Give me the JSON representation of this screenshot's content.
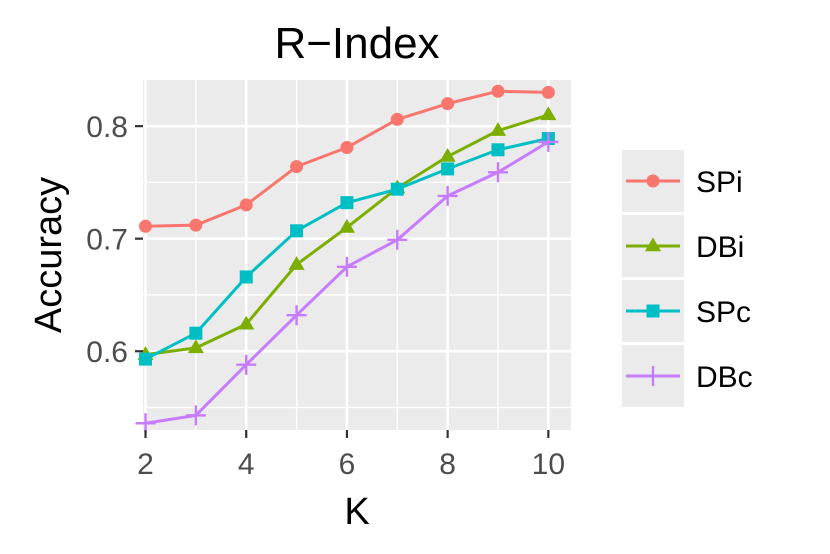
{
  "chart_data": {
    "type": "line",
    "title": "R−Index",
    "xlabel": "K",
    "ylabel": "Accuracy",
    "x": [
      2,
      3,
      4,
      5,
      6,
      7,
      8,
      9,
      10
    ],
    "xlim": [
      1.95,
      10.45
    ],
    "ylim": [
      0.53,
      0.841
    ],
    "xticks": [
      2,
      4,
      6,
      8,
      10
    ],
    "xtick_labels": [
      "2",
      "4",
      "6",
      "8",
      "10"
    ],
    "yticks": [
      0.6,
      0.7,
      0.8
    ],
    "ytick_labels": [
      "0.6",
      "0.7",
      "0.8"
    ],
    "grid": true,
    "legend_position": "right",
    "series": [
      {
        "name": "SPi",
        "color": "#F8766D",
        "marker": "circle",
        "values": [
          0.711,
          0.712,
          0.73,
          0.764,
          0.781,
          0.806,
          0.82,
          0.831,
          0.83
        ]
      },
      {
        "name": "DBi",
        "color": "#7CAE00",
        "marker": "triangle",
        "values": [
          0.597,
          0.603,
          0.624,
          0.677,
          0.71,
          0.745,
          0.773,
          0.796,
          0.81
        ]
      },
      {
        "name": "SPc",
        "color": "#00BFC4",
        "marker": "square",
        "values": [
          0.593,
          0.616,
          0.666,
          0.707,
          0.732,
          0.744,
          0.762,
          0.779,
          0.789
        ]
      },
      {
        "name": "DBc",
        "color": "#C77CFF",
        "marker": "plus",
        "values": [
          0.536,
          0.543,
          0.588,
          0.632,
          0.675,
          0.699,
          0.738,
          0.759,
          0.786
        ]
      }
    ]
  }
}
